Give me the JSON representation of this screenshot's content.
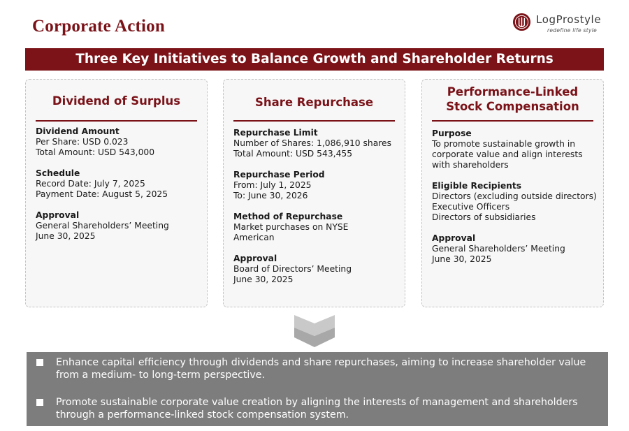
{
  "header": {
    "title": "Corporate Action",
    "logo_name": "LogProstyle",
    "logo_tagline": "redefine life style",
    "accent_color": "#7b1318"
  },
  "banner": {
    "text": "Three Key Initiatives to Balance Growth and Shareholder Returns"
  },
  "cards": [
    {
      "title_lines": [
        "Dividend of Surplus"
      ],
      "sections": [
        {
          "label": "Dividend Amount",
          "lines": [
            "Per Share: USD 0.023",
            "Total Amount: USD 543,000"
          ]
        },
        {
          "label": "Schedule",
          "lines": [
            "Record Date: July 7, 2025",
            "Payment Date: August 5, 2025"
          ]
        },
        {
          "label": "Approval",
          "lines": [
            "General Shareholders’ Meeting",
            "June 30, 2025"
          ]
        }
      ]
    },
    {
      "title_lines": [
        "Share Repurchase"
      ],
      "sections": [
        {
          "label": "Repurchase Limit",
          "lines": [
            "Number of Shares: 1,086,910 shares",
            "Total Amount: USD 543,455"
          ]
        },
        {
          "label": "Repurchase Period",
          "lines": [
            "From: July 1, 2025",
            "To: June 30, 2026"
          ]
        },
        {
          "label": "Method of Repurchase",
          "lines": [
            "Market purchases on NYSE",
            "American"
          ]
        },
        {
          "label": "Approval",
          "lines": [
            "Board of Directors’ Meeting",
            "June 30, 2025"
          ]
        }
      ]
    },
    {
      "title_lines": [
        "Performance-Linked",
        "Stock Compensation"
      ],
      "sections": [
        {
          "label": "Purpose",
          "lines": [
            "To promote sustainable growth in",
            "corporate value and align interests",
            "with shareholders"
          ]
        },
        {
          "label": "Eligible Recipients",
          "lines": [
            "Directors (excluding outside directors)",
            "Executive Officers",
            "Directors of subsidiaries"
          ]
        },
        {
          "label": "Approval",
          "lines": [
            "General Shareholders’ Meeting",
            "June 30, 2025"
          ]
        }
      ]
    }
  ],
  "summary": {
    "bullets": [
      "Enhance capital efficiency through dividends and share repurchases, aiming to increase shareholder value from a medium- to long-term perspective.",
      "Promote sustainable corporate value creation by aligning the interests of management and shareholders through a performance-linked stock compensation system."
    ]
  }
}
